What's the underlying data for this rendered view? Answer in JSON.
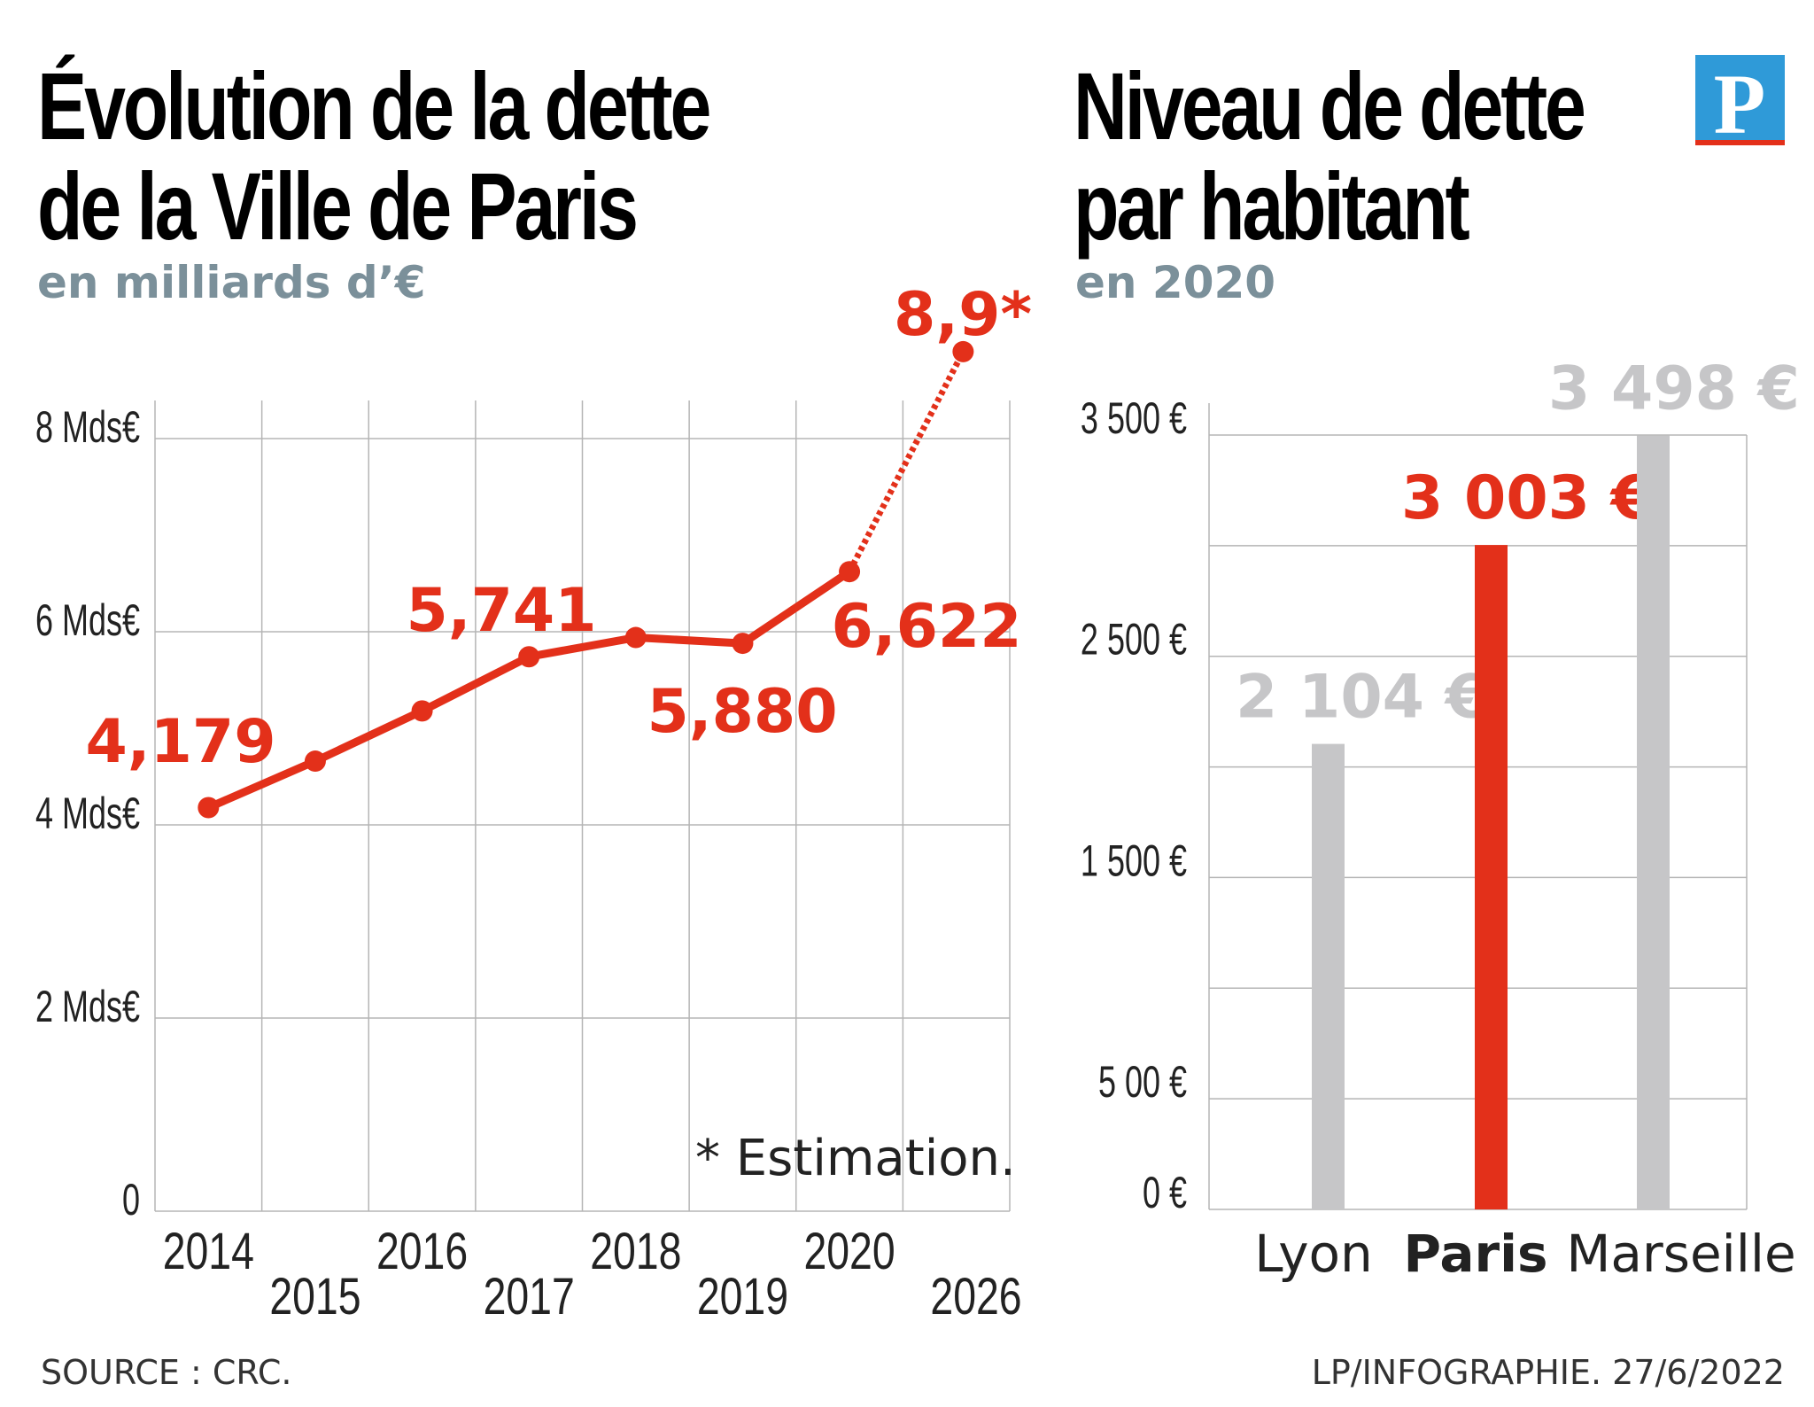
{
  "colors": {
    "accent": "#e3301a",
    "gray_bar": "#c6c6c8",
    "subtitle": "#7b909a",
    "logo_blue": "#2f9ad8",
    "grid": "#b5b5b5"
  },
  "logo": {
    "letter": "P"
  },
  "footer": {
    "source": "SOURCE : CRC.",
    "credit": "LP/INFOGRAPHIE.  27/6/2022"
  },
  "chart_data": [
    {
      "type": "line",
      "title_lines": [
        "Évolution de la dette",
        "de la Ville de Paris"
      ],
      "subtitle": "en milliards d’€",
      "categories": [
        "2014",
        "2015",
        "2016",
        "2017",
        "2018",
        "2019",
        "2020",
        "2026"
      ],
      "values": [
        4.179,
        4.66,
        5.18,
        5.741,
        5.94,
        5.88,
        6.622,
        8.9
      ],
      "estimated": [
        false,
        false,
        false,
        false,
        false,
        false,
        false,
        true
      ],
      "data_labels": [
        {
          "index": 0,
          "text": "4,179"
        },
        {
          "index": 3,
          "text": "5,741"
        },
        {
          "index": 5,
          "text": "5,880"
        },
        {
          "index": 6,
          "text": "6,622"
        },
        {
          "index": 7,
          "text": "8,9*"
        }
      ],
      "yticks": [
        0,
        2,
        4,
        6,
        8
      ],
      "ytick_labels": [
        "0",
        "2 Mds€",
        "4 Mds€",
        "6 Mds€",
        "8 Mds€"
      ],
      "ylim": [
        0,
        8.4
      ],
      "grid": true,
      "note": "* Estimation."
    },
    {
      "type": "bar",
      "title_lines": [
        "Niveau de dette",
        "par habitant"
      ],
      "subtitle": "en 2020",
      "categories": [
        "Lyon",
        "Paris",
        "Marseille"
      ],
      "values": [
        2104,
        3003,
        3498
      ],
      "data_labels": [
        "2 104 €",
        "3 003 €",
        "3 498 €"
      ],
      "highlight": "Paris",
      "yticks": [
        0,
        500,
        1500,
        2500,
        3500
      ],
      "ytick_labels": [
        "0 €",
        "5 00 €",
        "1 500 €",
        "2 500 €",
        "3 500 €"
      ],
      "gridlines": [
        0,
        500,
        1000,
        1500,
        2000,
        2500,
        3000,
        3500
      ],
      "ylim": [
        0,
        3500
      ],
      "grid": true
    }
  ]
}
